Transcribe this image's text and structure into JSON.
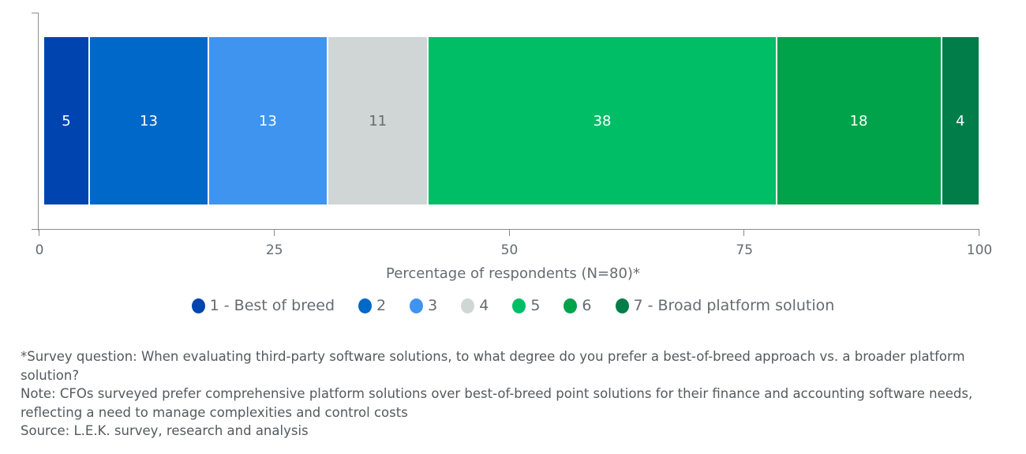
{
  "chart_data": {
    "type": "bar",
    "orientation": "horizontal",
    "stacked": true,
    "title": "",
    "xlabel": "Percentage of respondents (N=80)*",
    "ylabel": "",
    "xlim": [
      0,
      100
    ],
    "x_ticks": [
      "0",
      "25",
      "50",
      "75",
      "100"
    ],
    "grid": false,
    "legend_position": "bottom",
    "categories": [
      ""
    ],
    "series": [
      {
        "name": "1 - Best of breed",
        "values": [
          5
        ],
        "color": "#0044b0"
      },
      {
        "name": "2",
        "values": [
          13
        ],
        "color": "#0068c8"
      },
      {
        "name": "3",
        "values": [
          13
        ],
        "color": "#3f94f0"
      },
      {
        "name": "4",
        "values": [
          11
        ],
        "color": "#cfd6d5"
      },
      {
        "name": "5",
        "values": [
          38
        ],
        "color": "#00be66"
      },
      {
        "name": "6",
        "values": [
          18
        ],
        "color": "#00a24a"
      },
      {
        "name": "7 - Broad platform solution",
        "values": [
          4
        ],
        "color": "#007d48"
      }
    ]
  },
  "segments": [
    {
      "label": "5",
      "value": 5,
      "color": "#0044b0",
      "text_color": "#ffffff"
    },
    {
      "label": "13",
      "value": 13,
      "color": "#0068c8",
      "text_color": "#ffffff"
    },
    {
      "label": "13",
      "value": 13,
      "color": "#3f94f0",
      "text_color": "#ffffff"
    },
    {
      "label": "11",
      "value": 11,
      "color": "#cfd6d5",
      "text_color": "#666b70"
    },
    {
      "label": "38",
      "value": 38,
      "color": "#00be66",
      "text_color": "#ffffff"
    },
    {
      "label": "18",
      "value": 18,
      "color": "#00a24a",
      "text_color": "#ffffff"
    },
    {
      "label": "4",
      "value": 4,
      "color": "#007d48",
      "text_color": "#ffffff"
    }
  ],
  "axis": {
    "ticks": [
      {
        "label": "0",
        "pos": 0
      },
      {
        "label": "25",
        "pos": 25
      },
      {
        "label": "50",
        "pos": 50
      },
      {
        "label": "75",
        "pos": 75
      },
      {
        "label": "100",
        "pos": 100
      }
    ],
    "title": "Percentage of respondents (N=80)*"
  },
  "legend": [
    {
      "label": "1 - Best of breed",
      "color": "#0044b0"
    },
    {
      "label": "2",
      "color": "#0068c8"
    },
    {
      "label": "3",
      "color": "#3f94f0"
    },
    {
      "label": "4",
      "color": "#cfd6d5"
    },
    {
      "label": "5",
      "color": "#00be66"
    },
    {
      "label": "6",
      "color": "#00a24a"
    },
    {
      "label": "7 - Broad platform solution",
      "color": "#007d48"
    }
  ],
  "notes": {
    "survey_question": "*Survey question: When evaluating third-party software solutions, to what degree do you prefer a best-of-breed approach vs. a broader platform solution?",
    "note": "Note: CFOs surveyed prefer comprehensive platform solutions over best-of-breed point solutions for their finance and accounting software needs, reflecting a need to manage complexities and control costs",
    "source": "Source: L.E.K. survey, research and analysis"
  }
}
